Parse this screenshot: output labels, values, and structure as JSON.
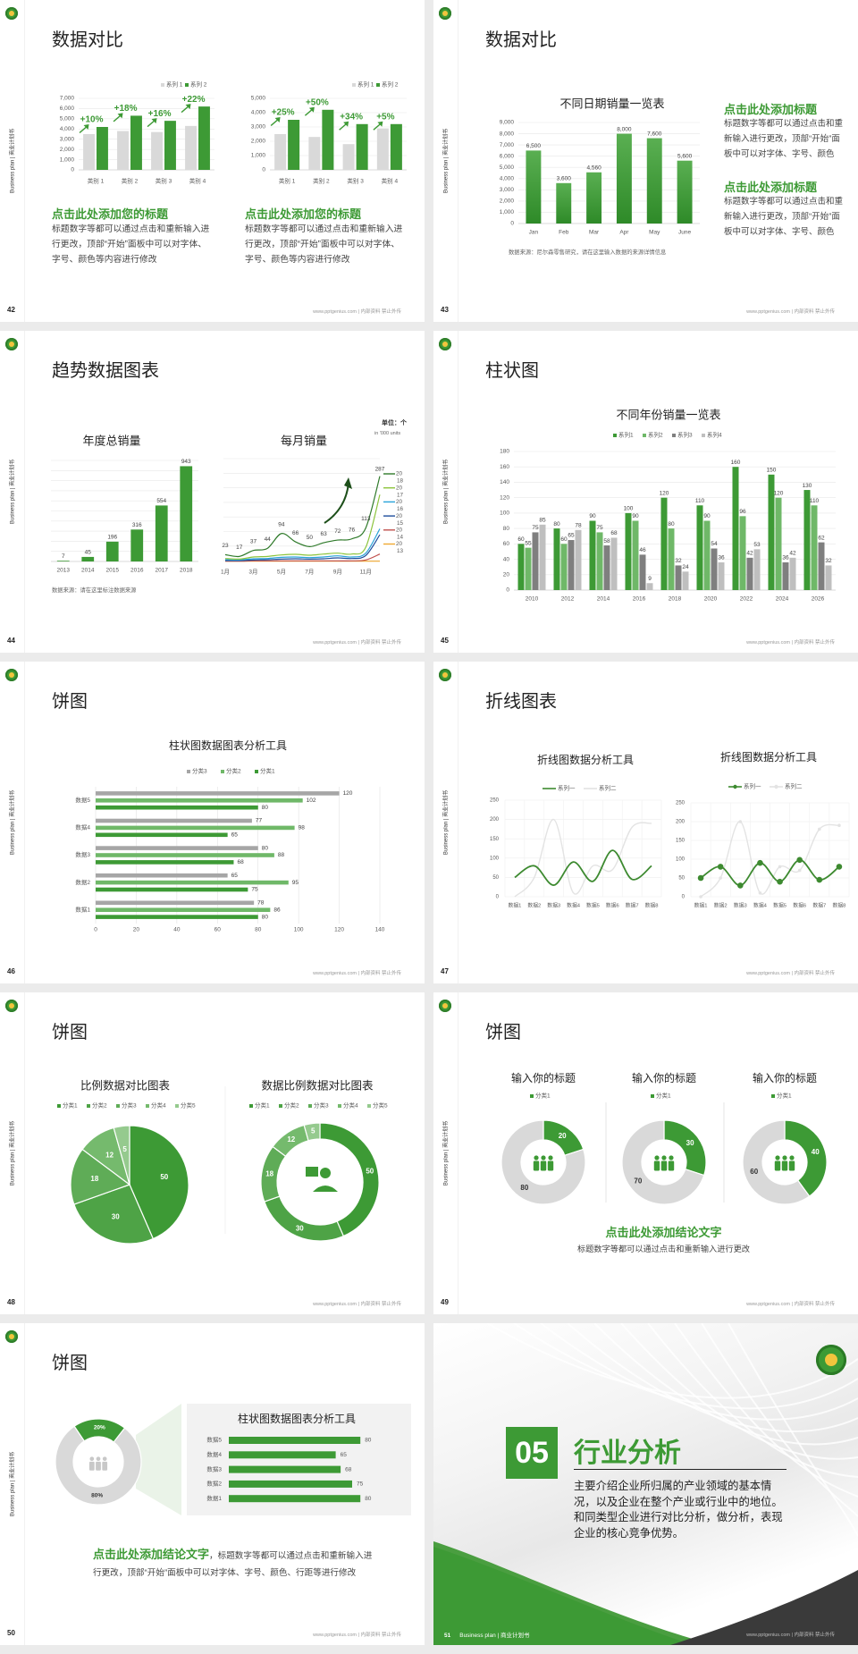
{
  "common": {
    "side_label": "Business plan | 商业计划书",
    "footer": "www.pptgenius.com | 内部资料 禁止外传",
    "logo": "green-round-emblem"
  },
  "colors": {
    "green": "#3d9a35",
    "light_green": "#6fb868",
    "bar_gray": "#d9d9d9",
    "dark_gray": "#7f7f7f",
    "light_gray": "#bfbfbf",
    "background": "#ebebeb"
  },
  "slides": [
    {
      "number": "42",
      "title": "数据对比",
      "blocks": [
        {
          "heading": "点击此处添加您的标题",
          "body": "标题数字等都可以通过点击和重新输入进行更改，顶部“开始”面板中可以对字体、字号、颜色等内容进行修改"
        },
        {
          "heading": "点击此处添加您的标题",
          "body": "标题数字等都可以通过点击和重新输入进行更改，顶部“开始”面板中可以对字体、字号、颜色等内容进行修改"
        }
      ]
    },
    {
      "number": "43",
      "title": "数据对比",
      "source": "数据来源：尼尔森零售研究，请在这里输入数据的来源详情信息",
      "blocks": [
        {
          "heading": "点击此处添加标题",
          "body": "标题数字等都可以通过点击和重新输入进行更改，顶部“开始”面板中可以对字体、字号、颜色"
        },
        {
          "heading": "点击此处添加标题",
          "body": "标题数字等都可以通过点击和重新输入进行更改，顶部“开始”面板中可以对字体、字号、颜色"
        }
      ]
    },
    {
      "number": "44",
      "title": "趋势数据图表",
      "source": "数据来源：请在这里标注数据来源",
      "unit": "单位：个",
      "unit_sub": "in '000 units"
    },
    {
      "number": "45",
      "title": "柱状图"
    },
    {
      "number": "46",
      "title": "饼图"
    },
    {
      "number": "47",
      "title": "折线图表"
    },
    {
      "number": "48",
      "title": "饼图"
    },
    {
      "number": "49",
      "title": "饼图",
      "conclusion_heading": "点击此处添加结论文字",
      "conclusion_body": "标题数字等都可以通过点击和重新输入进行更改"
    },
    {
      "number": "50",
      "title": "饼图",
      "conclusion_heading": "点击此处添加结论文字",
      "conclusion_body": "，标题数字等都可以通过点击和重新输入进行更改，顶部“开始”面板中可以对字体、字号、颜色、行距等进行修改"
    },
    {
      "number": "51",
      "section_number": "05",
      "section_title": "行业分析",
      "description": "主要介绍企业所归属的产业领域的基本情况，以及企业在整个产业或行业中的地位。和同类型企业进行对比分析，做分析，表现企业的核心竞争优势。",
      "footer_left": "Business plan | 商业计划书"
    }
  ],
  "chart_data": [
    {
      "type": "bar",
      "categories": [
        "类别 1",
        "类别 2",
        "类别 3",
        "类别 4"
      ],
      "ylim": [
        0,
        7000
      ],
      "ytick": 1000,
      "grid": true,
      "legend": "top-right",
      "series": [
        {
          "name": "系列 1",
          "color": "#d9d9d9",
          "values": [
            3500,
            3800,
            3700,
            4300
          ]
        },
        {
          "name": "系列 2",
          "color": "#3d9a35",
          "values": [
            4200,
            5300,
            4800,
            6200
          ]
        }
      ],
      "annotations": [
        "+10%",
        "+18%",
        "+16%",
        "+22%"
      ]
    },
    {
      "type": "bar",
      "categories": [
        "类别 1",
        "类别 2",
        "类别 3",
        "类别 4"
      ],
      "ylim": [
        0,
        5000
      ],
      "ytick": 1000,
      "grid": true,
      "legend": "top-right",
      "series": [
        {
          "name": "系列 1",
          "color": "#d9d9d9",
          "values": [
            2500,
            2300,
            1800,
            2900
          ]
        },
        {
          "name": "系列 2",
          "color": "#3d9a35",
          "values": [
            3500,
            4200,
            3200,
            3200
          ]
        }
      ],
      "annotations": [
        "+25%",
        "+50%",
        "+34%",
        "+5%"
      ]
    },
    {
      "type": "bar",
      "title": "不同日期销量一览表",
      "categories": [
        "Jan",
        "Feb",
        "Mar",
        "Apr",
        "May",
        "June"
      ],
      "ylim": [
        0,
        9000
      ],
      "ytick": 1000,
      "grid": true,
      "series": [
        {
          "values": [
            6500,
            3600,
            4560,
            8000,
            7600,
            5600
          ]
        }
      ]
    },
    {
      "type": "bar",
      "title": "年度总销量",
      "categories": [
        "2013",
        "2014",
        "2015",
        "2016",
        "2017",
        "2018"
      ],
      "ylim": [
        0,
        1000
      ],
      "ytick": 100,
      "grid": true,
      "series": [
        {
          "values": [
            7,
            45,
            196,
            316,
            554,
            943
          ]
        }
      ]
    },
    {
      "type": "line",
      "title": "每月销量",
      "categories": [
        "1月",
        "2月",
        "3月",
        "4月",
        "5月",
        "6月",
        "7月",
        "8月",
        "9月",
        "10月",
        "11月",
        "12月"
      ],
      "ylim": [
        0,
        340
      ],
      "grid": true,
      "legend": "right",
      "series": [
        {
          "name": "2018",
          "color": "#2f7a2a",
          "values": [
            23,
            17,
            37,
            44,
            94,
            66,
            50,
            63,
            72,
            76,
            113,
            287
          ]
        },
        {
          "name": "2017",
          "color": "#8cc43c",
          "values": [
            10,
            8,
            15,
            17,
            22,
            24,
            21,
            25,
            28,
            25,
            48,
            225
          ]
        },
        {
          "name": "2016",
          "color": "#29a3d9",
          "values": [
            6,
            5,
            9,
            10,
            14,
            15,
            13,
            15,
            19,
            15,
            28,
            110
          ]
        },
        {
          "name": "2015",
          "color": "#1f4e9c",
          "values": [
            3,
            3,
            5,
            6,
            8,
            9,
            8,
            9,
            12,
            10,
            20,
            90
          ]
        },
        {
          "name": "2014",
          "color": "#c0504d",
          "values": [
            1,
            1,
            2,
            2,
            2,
            2,
            2,
            2,
            2,
            2,
            5,
            25
          ]
        },
        {
          "name": "2013",
          "color": "#f0a830",
          "values": [
            1,
            1,
            1,
            1,
            1,
            1,
            1,
            1,
            1,
            1,
            1,
            1
          ]
        }
      ]
    },
    {
      "type": "bar",
      "title": "不同年份销量一览表",
      "categories": [
        "2010",
        "2012",
        "2014",
        "2016",
        "2018",
        "2020",
        "2022",
        "2024",
        "2026"
      ],
      "ylim": [
        0,
        180
      ],
      "ytick": 20,
      "grid": true,
      "legend": "top",
      "series": [
        {
          "name": "系列1",
          "color": "#3d9a35",
          "values": [
            60,
            80,
            90,
            100,
            120,
            110,
            160,
            150,
            130
          ]
        },
        {
          "name": "系列2",
          "color": "#6fb868",
          "values": [
            55,
            60,
            75,
            90,
            80,
            90,
            96,
            120,
            110
          ]
        },
        {
          "name": "系列3",
          "color": "#7f7f7f",
          "values": [
            75,
            65,
            58,
            46,
            32,
            54,
            42,
            36,
            62
          ]
        },
        {
          "name": "系列4",
          "color": "#bfbfbf",
          "values": [
            85,
            78,
            68,
            9,
            24,
            36,
            53,
            42,
            32
          ]
        }
      ]
    },
    {
      "type": "bar",
      "orientation": "horizontal",
      "title": "柱状图数据图表分析工具",
      "categories": [
        "数据5",
        "数据4",
        "数据3",
        "数据2",
        "数据1"
      ],
      "xlim": [
        0,
        140
      ],
      "xtick": 20,
      "grid": true,
      "legend": "top",
      "series": [
        {
          "name": "分类3",
          "color": "#a6a6a6",
          "values": [
            120,
            77,
            80,
            65,
            78
          ]
        },
        {
          "name": "分类2",
          "color": "#6fb868",
          "values": [
            102,
            98,
            88,
            95,
            86
          ]
        },
        {
          "name": "分类1",
          "color": "#3d9a35",
          "values": [
            80,
            65,
            68,
            75,
            80
          ]
        }
      ]
    },
    {
      "type": "line",
      "title": "折线图数据分析工具",
      "categories": [
        "数据1",
        "数据2",
        "数据3",
        "数据4",
        "数据5",
        "数据6",
        "数据7",
        "数据8"
      ],
      "ylim": [
        0,
        250
      ],
      "ytick": 50,
      "grid": true,
      "legend": "top",
      "markers": false,
      "series": [
        {
          "name": "系列一",
          "color": "#3d8a30",
          "values": [
            50,
            80,
            30,
            90,
            40,
            120,
            45,
            80
          ]
        },
        {
          "name": "系列二",
          "color": "#e3e3e3",
          "values": [
            0,
            50,
            200,
            10,
            80,
            70,
            180,
            190
          ]
        }
      ]
    },
    {
      "type": "line",
      "title": "折线图数据分析工具",
      "categories": [
        "数据1",
        "数据2",
        "数据3",
        "数据4",
        "数据5",
        "数据6",
        "数据7",
        "数据8"
      ],
      "ylim": [
        0,
        250
      ],
      "ytick": 50,
      "grid": true,
      "legend": "top",
      "markers": true,
      "series": [
        {
          "name": "系列一",
          "color": "#3d8a30",
          "values": [
            50,
            80,
            30,
            90,
            40,
            98,
            45,
            80
          ]
        },
        {
          "name": "系列二",
          "color": "#e3e3e3",
          "values": [
            0,
            50,
            200,
            10,
            80,
            70,
            180,
            190
          ]
        }
      ]
    },
    {
      "type": "pie",
      "title": "比例数据对比图表",
      "legend": "top",
      "labels": [
        "分类1",
        "分类2",
        "分类3",
        "分类4",
        "分类5"
      ],
      "values": [
        50,
        30,
        18,
        12,
        5
      ],
      "colors": [
        "#3d9a35",
        "#4ea346",
        "#5fac57",
        "#75ba6d",
        "#95ca8e"
      ]
    },
    {
      "type": "pie",
      "variant": "donut",
      "title": "数据比例数据对比图表",
      "legend": "top",
      "center_icon": "person-speech-icon",
      "labels": [
        "分类1",
        "分类2",
        "分类3",
        "分类4",
        "分类5"
      ],
      "values": [
        50,
        30,
        18,
        12,
        5
      ],
      "colors": [
        "#3d9a35",
        "#4ea346",
        "#5fac57",
        "#75ba6d",
        "#95ca8e"
      ]
    },
    {
      "type": "pie",
      "variant": "donut",
      "title": "输入你的标题",
      "legend_label": "分类1",
      "values": [
        20,
        80
      ],
      "colors": [
        "#3d9a35",
        "#d9d9d9"
      ],
      "center_icon": "team-icon"
    },
    {
      "type": "pie",
      "variant": "donut",
      "title": "输入你的标题",
      "legend_label": "分类1",
      "values": [
        30,
        70
      ],
      "colors": [
        "#3d9a35",
        "#d9d9d9"
      ],
      "center_icon": "team-icon"
    },
    {
      "type": "pie",
      "variant": "donut",
      "title": "输入你的标题",
      "legend_label": "分类1",
      "values": [
        40,
        60
      ],
      "colors": [
        "#3d9a35",
        "#d9d9d9"
      ],
      "center_icon": "team-icon"
    },
    {
      "type": "pie",
      "variant": "donut",
      "labels": [
        "80%",
        "20%"
      ],
      "values": [
        80,
        20
      ],
      "colors": [
        "#d9d9d9",
        "#3d9a35"
      ],
      "center_icon": "team-icon"
    },
    {
      "type": "bar",
      "orientation": "horizontal",
      "title": "柱状图数据图表分析工具",
      "categories": [
        "数据5",
        "数据4",
        "数据3",
        "数据2",
        "数据1"
      ],
      "xlim": [
        0,
        100
      ],
      "series": [
        {
          "color": "#3d9a35",
          "values": [
            80,
            65,
            68,
            75,
            80
          ]
        }
      ]
    }
  ]
}
